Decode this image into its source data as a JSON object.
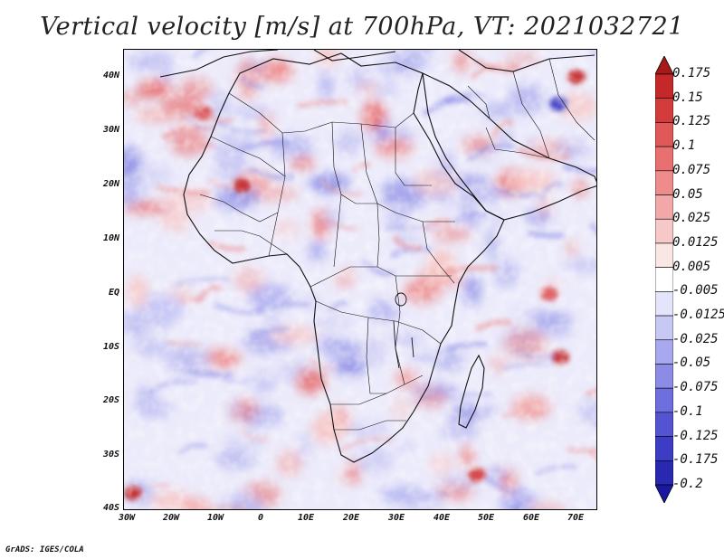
{
  "title": "Vertical velocity [m/s] at 700hPa, VT: 2021032721",
  "credit": "GrADS: IGES/COLA",
  "map": {
    "region": "Africa",
    "field": "vertical velocity",
    "level": "700hPa",
    "lat_labels": [
      "40N",
      "30N",
      "20N",
      "10N",
      "EQ",
      "10S",
      "20S",
      "30S",
      "40S"
    ],
    "lon_labels": [
      "30W",
      "20W",
      "10W",
      "0",
      "10E",
      "20E",
      "30E",
      "40E",
      "50E",
      "60E",
      "70E"
    ],
    "lat_range": [
      -40,
      45
    ],
    "lon_range": [
      -30,
      75
    ]
  },
  "colorbar": {
    "levels": [
      "0.175",
      "0.15",
      "0.125",
      "0.1",
      "0.075",
      "0.05",
      "0.025",
      "0.0125",
      "0.005",
      "-0.005",
      "-0.0125",
      "-0.025",
      "-0.05",
      "-0.075",
      "-0.1",
      "-0.125",
      "-0.175",
      "-0.2"
    ],
    "colors": [
      "#a81a1a",
      "#c42828",
      "#d43c3c",
      "#e05858",
      "#e87070",
      "#ee8c8c",
      "#f2a8a8",
      "#f7c8c8",
      "#fbe6e6",
      "#ffffff",
      "#e4e4fa",
      "#c8c8f4",
      "#a8a8ee",
      "#8c8ce6",
      "#6e6ede",
      "#5454d2",
      "#3c3cc4",
      "#2828b0",
      "#1818a0"
    ]
  }
}
